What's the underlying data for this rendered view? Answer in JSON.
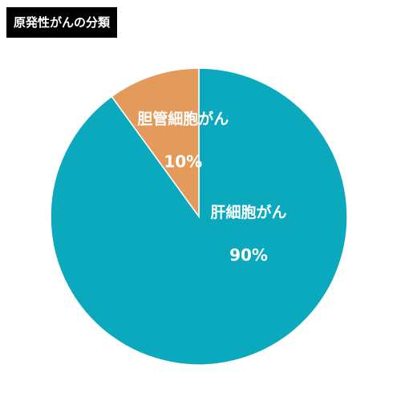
{
  "chart_data": {
    "type": "pie",
    "title": "原発性がんの分類",
    "slices": [
      {
        "label": "肝細胞がん",
        "value": 90,
        "value_label": "90%",
        "color": "#0aa9bd"
      },
      {
        "label": "胆管細胞がん",
        "value": 10,
        "value_label": "10%",
        "color": "#e39a5a"
      }
    ],
    "start": "12 o'clock",
    "direction": "clockwise",
    "legend": "none",
    "labels_inside_slices": true
  }
}
